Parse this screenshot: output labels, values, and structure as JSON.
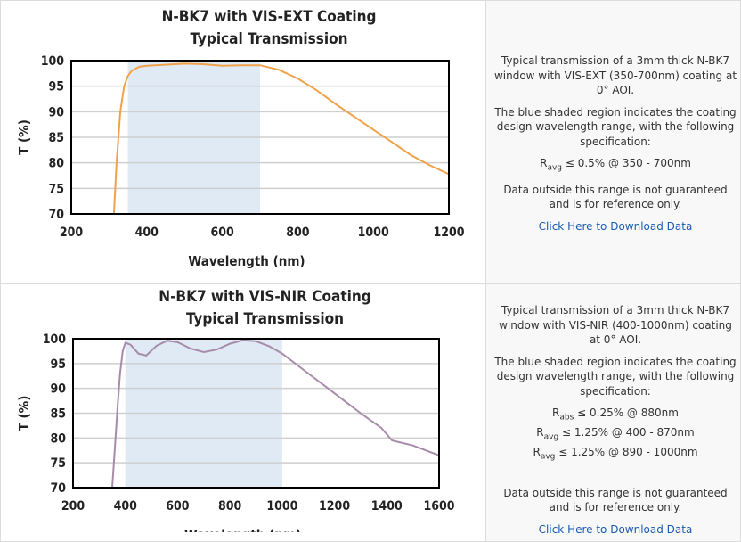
{
  "chart_data": [
    {
      "type": "line",
      "title": "N-BK7 with VIS-EXT Coating",
      "subtitle": "Typical Transmission",
      "x_label": "Wavelength (nm)",
      "y_label": "T (%)",
      "x": [
        313,
        320,
        330,
        340,
        350,
        360,
        380,
        400,
        450,
        500,
        550,
        600,
        650,
        700,
        750,
        800,
        850,
        900,
        950,
        1000,
        1050,
        1100,
        1150,
        1200
      ],
      "values": [
        70,
        80,
        90,
        95,
        97,
        98,
        98.8,
        99,
        99.2,
        99.4,
        99.3,
        99,
        99.1,
        99.1,
        98.2,
        96.5,
        94.2,
        91.5,
        89,
        86.5,
        84,
        81.5,
        79.5,
        77.8
      ],
      "color": "#f0a24a",
      "shade": [
        350,
        700
      ],
      "shade_color": "#dfeaf5",
      "xlim": [
        200,
        1200
      ],
      "xticks": [
        200,
        400,
        600,
        800,
        1000,
        1200
      ],
      "ylim": [
        70,
        100
      ],
      "yticks": [
        70,
        75,
        80,
        85,
        90,
        95,
        100
      ],
      "grid": true
    },
    {
      "type": "line",
      "title": "N-BK7 with VIS-NIR Coating",
      "subtitle": "Typical Transmission",
      "x_label": "Wavelength (nm)",
      "y_label": "T (%)",
      "x": [
        350,
        360,
        370,
        380,
        390,
        400,
        420,
        450,
        480,
        520,
        560,
        600,
        650,
        700,
        750,
        800,
        850,
        900,
        950,
        1000,
        1100,
        1200,
        1300,
        1380,
        1420,
        1500,
        1600
      ],
      "values": [
        70,
        78,
        86,
        93,
        97.5,
        99.2,
        98.8,
        97,
        96.6,
        98.6,
        99.6,
        99.3,
        98,
        97.3,
        97.8,
        99,
        99.7,
        99.5,
        98.5,
        97,
        93,
        89,
        85,
        82,
        79.5,
        78.5,
        76.5
      ],
      "color": "#a88bab",
      "shade": [
        400,
        1000
      ],
      "shade_color": "#dfeaf5",
      "xlim": [
        200,
        1600
      ],
      "xticks": [
        200,
        400,
        600,
        800,
        1000,
        1200,
        1400,
        1600
      ],
      "ylim": [
        70,
        100
      ],
      "yticks": [
        70,
        75,
        80,
        85,
        90,
        95,
        100
      ],
      "grid": true
    }
  ],
  "panels": [
    {
      "paragraphs": [
        "Typical transmission of a 3mm thick N-BK7 window with VIS-EXT (350-700nm) coating at 0° AOI.",
        "The blue shaded region indicates the coating design wavelength range, with the following specification:"
      ],
      "specs": [
        {
          "symbol": "R",
          "sub": "avg",
          "text": "≤ 0.5% @ 350 - 700nm"
        }
      ],
      "note": "Data outside this range is not guaranteed and is for reference only.",
      "link": "Click Here to Download Data"
    },
    {
      "paragraphs": [
        "Typical transmission of a 3mm thick N-BK7 window with VIS-NIR (400-1000nm) coating at 0° AOI.",
        "The blue shaded region indicates the coating design wavelength range, with the following specification:"
      ],
      "specs": [
        {
          "symbol": "R",
          "sub": "abs",
          "text": "≤ 0.25% @ 880nm"
        },
        {
          "symbol": "R",
          "sub": "avg",
          "text": "≤ 1.25% @ 400 - 870nm"
        },
        {
          "symbol": "R",
          "sub": "avg",
          "text": "≤ 1.25% @ 890 - 1000nm"
        }
      ],
      "note": "Data outside this range is not guaranteed and is for reference only.",
      "link": "Click Here to Download Data"
    }
  ]
}
